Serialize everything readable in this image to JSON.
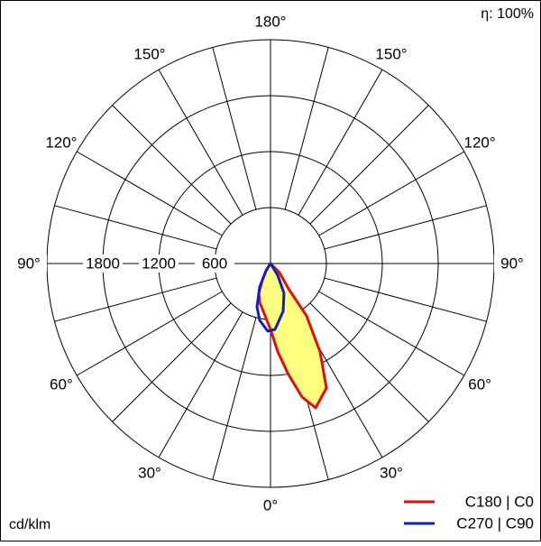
{
  "chart_data": {
    "type": "polar",
    "efficiency_label": "η: 100%",
    "unit_label": "cd/klm",
    "rlim": [
      0,
      2400
    ],
    "rticks": [
      600,
      1200,
      1800
    ],
    "angle_grid_step": 15,
    "angleticks": [
      {
        "value": -150,
        "label": "150°"
      },
      {
        "value": -120,
        "label": "120°"
      },
      {
        "value": -90,
        "label": "90°"
      },
      {
        "value": -60,
        "label": "60°"
      },
      {
        "value": -30,
        "label": "30°"
      },
      {
        "value": 0,
        "label": "0°"
      },
      {
        "value": 30,
        "label": "30°"
      },
      {
        "value": 60,
        "label": "60°"
      },
      {
        "value": 90,
        "label": "90°"
      },
      {
        "value": 120,
        "label": "120°"
      },
      {
        "value": 150,
        "label": "150°"
      },
      {
        "value": 180,
        "label": "180°"
      }
    ],
    "series": [
      {
        "name": "C180 | C0",
        "color": "#e01010",
        "fill": "#ffff80",
        "x": [
          -33.7,
          -26.6,
          -21.5,
          -15.6,
          -5.9,
          0,
          4.7,
          9.2,
          13.3,
          17.4,
          24.2,
          29.3,
          34.6,
          35.5,
          45,
          60
        ],
        "values": [
          70,
          195,
          343,
          432,
          564,
          706,
          951,
          1206,
          1471,
          1622,
          1464,
          1088,
          682,
          333,
          135,
          0
        ]
      },
      {
        "name": "C270 | C90",
        "color": "#1020c0",
        "x": [
          -45,
          -32,
          -24.8,
          -17.4,
          -10.8,
          -2.3,
          3.9,
          14.8,
          24.4,
          31.6,
          45
        ],
        "values": [
          0,
          91,
          277,
          487,
          621,
          726,
          708,
          531,
          351,
          148,
          0
        ]
      }
    ]
  }
}
